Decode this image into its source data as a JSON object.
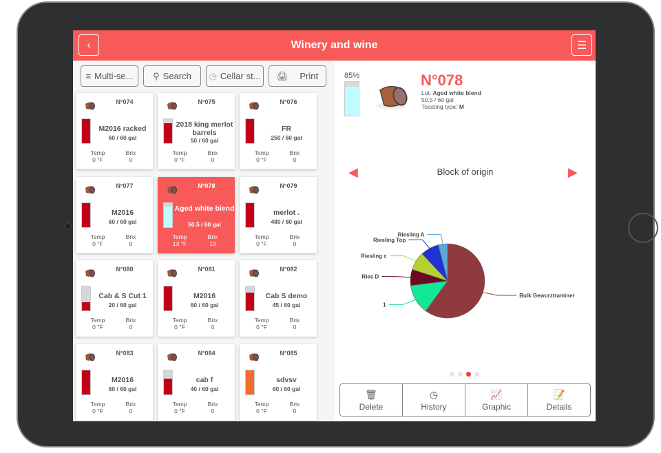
{
  "header": {
    "title": "Winery and wine",
    "back_icon": "chevron-left-icon",
    "menu_icon": "hamburger-icon"
  },
  "toolbar": {
    "multi": "Multi-se...",
    "search": "Search",
    "cellar": "Cellar st...",
    "print": "Print"
  },
  "stat_labels": {
    "temp": "Temp",
    "brix": "Brix"
  },
  "barrels": [
    {
      "num": "N°074",
      "name": "M2016 racked",
      "gal": "60 / 60 gal",
      "temp": "0 °F",
      "brix": "0",
      "fill": 1.0,
      "color": "#c1001a"
    },
    {
      "num": "N°075",
      "name": "2018 king merlot barrels",
      "gal": "50 / 60 gal",
      "temp": "0 °F",
      "brix": "0",
      "fill": 0.83,
      "color": "#c1001a"
    },
    {
      "num": "N°076",
      "name": "FR",
      "gal": "250 / 60 gal",
      "temp": "0 °F",
      "brix": "0",
      "fill": 1.0,
      "color": "#c1001a"
    },
    {
      "num": "N°077",
      "name": "M2016",
      "gal": "60 / 60 gal",
      "temp": "0 °F",
      "brix": "0",
      "fill": 1.0,
      "color": "#c1001a"
    },
    {
      "num": "N°078",
      "name": "Aged white blend",
      "gal": "50.5 / 60 gal",
      "temp": "13 °F",
      "brix": "19",
      "fill": 0.85,
      "color": "#bffcff",
      "selected": true
    },
    {
      "num": "N°079",
      "name": "merlot .",
      "gal": "480 / 60 gal",
      "temp": "0 °F",
      "brix": "0",
      "fill": 1.0,
      "color": "#c1001a"
    },
    {
      "num": "N°080",
      "name": "Cab & S Cut 1",
      "gal": "20 / 60 gal",
      "temp": "0 °F",
      "brix": "0",
      "fill": 0.33,
      "color": "#c1001a"
    },
    {
      "num": "N°081",
      "name": "M2016",
      "gal": "60 / 60 gal",
      "temp": "0 °F",
      "brix": "0",
      "fill": 1.0,
      "color": "#c1001a"
    },
    {
      "num": "N°082",
      "name": "Cab S demo",
      "gal": "45 / 60 gal",
      "temp": "0 °F",
      "brix": "0",
      "fill": 0.75,
      "color": "#c1001a"
    },
    {
      "num": "N°083",
      "name": "M2016",
      "gal": "60 / 60 gal",
      "temp": "0 °F",
      "brix": "0",
      "fill": 1.0,
      "color": "#c1001a"
    },
    {
      "num": "N°084",
      "name": "cab f",
      "gal": "40 / 60 gal",
      "temp": "0 °F",
      "brix": "0",
      "fill": 0.67,
      "color": "#c1001a"
    },
    {
      "num": "N°085",
      "name": "sdvsv",
      "gal": "60 / 60 gal",
      "temp": "0 °F",
      "brix": "0",
      "fill": 1.0,
      "color": "#f26b2a"
    }
  ],
  "detail": {
    "percent": "85%",
    "fill": 0.85,
    "num": "N°078",
    "lot_label": "Lot: ",
    "lot": "Aged white blend",
    "volume": "50.5 / 60 gal",
    "toast_label": "Toasting type: ",
    "toast": "M"
  },
  "chart_data": {
    "type": "pie",
    "title": "Block of origin",
    "labels": [
      "Bulk Gewurztraminer",
      "1",
      "Ries D",
      "Riesling c",
      "Riesling Top",
      "Riesling A"
    ],
    "values": [
      60,
      13,
      7,
      8,
      8,
      4
    ],
    "colors": [
      "#8f3a3f",
      "#12e896",
      "#6b0a22",
      "#b5d132",
      "#1e32d6",
      "#5aa7d8"
    ]
  },
  "pager": {
    "count": 4,
    "active": 2
  },
  "actions": {
    "delete": "Delete",
    "history": "History",
    "graphic": "Graphic",
    "details": "Details"
  }
}
